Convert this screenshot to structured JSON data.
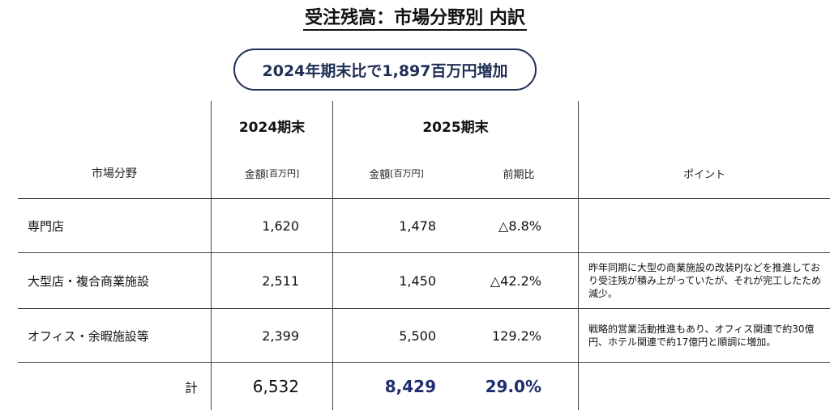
{
  "title": "受注残高：市場分野別 内訳",
  "highlight": "2024年期末比で1,897百万円増加",
  "headers": {
    "year_2024": "2024期末",
    "year_2025": "2025期末",
    "market": "市場分野",
    "amount_label": "金額",
    "amount_unit": "[百万円]",
    "yoy": "前期比",
    "point": "ポイント"
  },
  "rows": [
    {
      "category": "専門店",
      "amount_2024": "1,620",
      "amount_2025": "1,478",
      "yoy": "△8.8%",
      "point": ""
    },
    {
      "category": "大型店・複合商業施設",
      "amount_2024": "2,511",
      "amount_2025": "1,450",
      "yoy": "△42.2%",
      "point": "昨年同期に大型の商業施設の改装PJなどを推進しており受注残が積み上がっていたが、それが完工したため減少。"
    },
    {
      "category": "オフィス・余暇施設等",
      "amount_2024": "2,399",
      "amount_2025": "5,500",
      "yoy": "129.2%",
      "point": "戦略的営業活動推進もあり、オフィス関連で約30億円、ホテル関連で約17億円と順調に増加。"
    }
  ],
  "total": {
    "label": "計",
    "amount_2024": "6,532",
    "amount_2025": "8,429",
    "yoy": "29.0%"
  }
}
